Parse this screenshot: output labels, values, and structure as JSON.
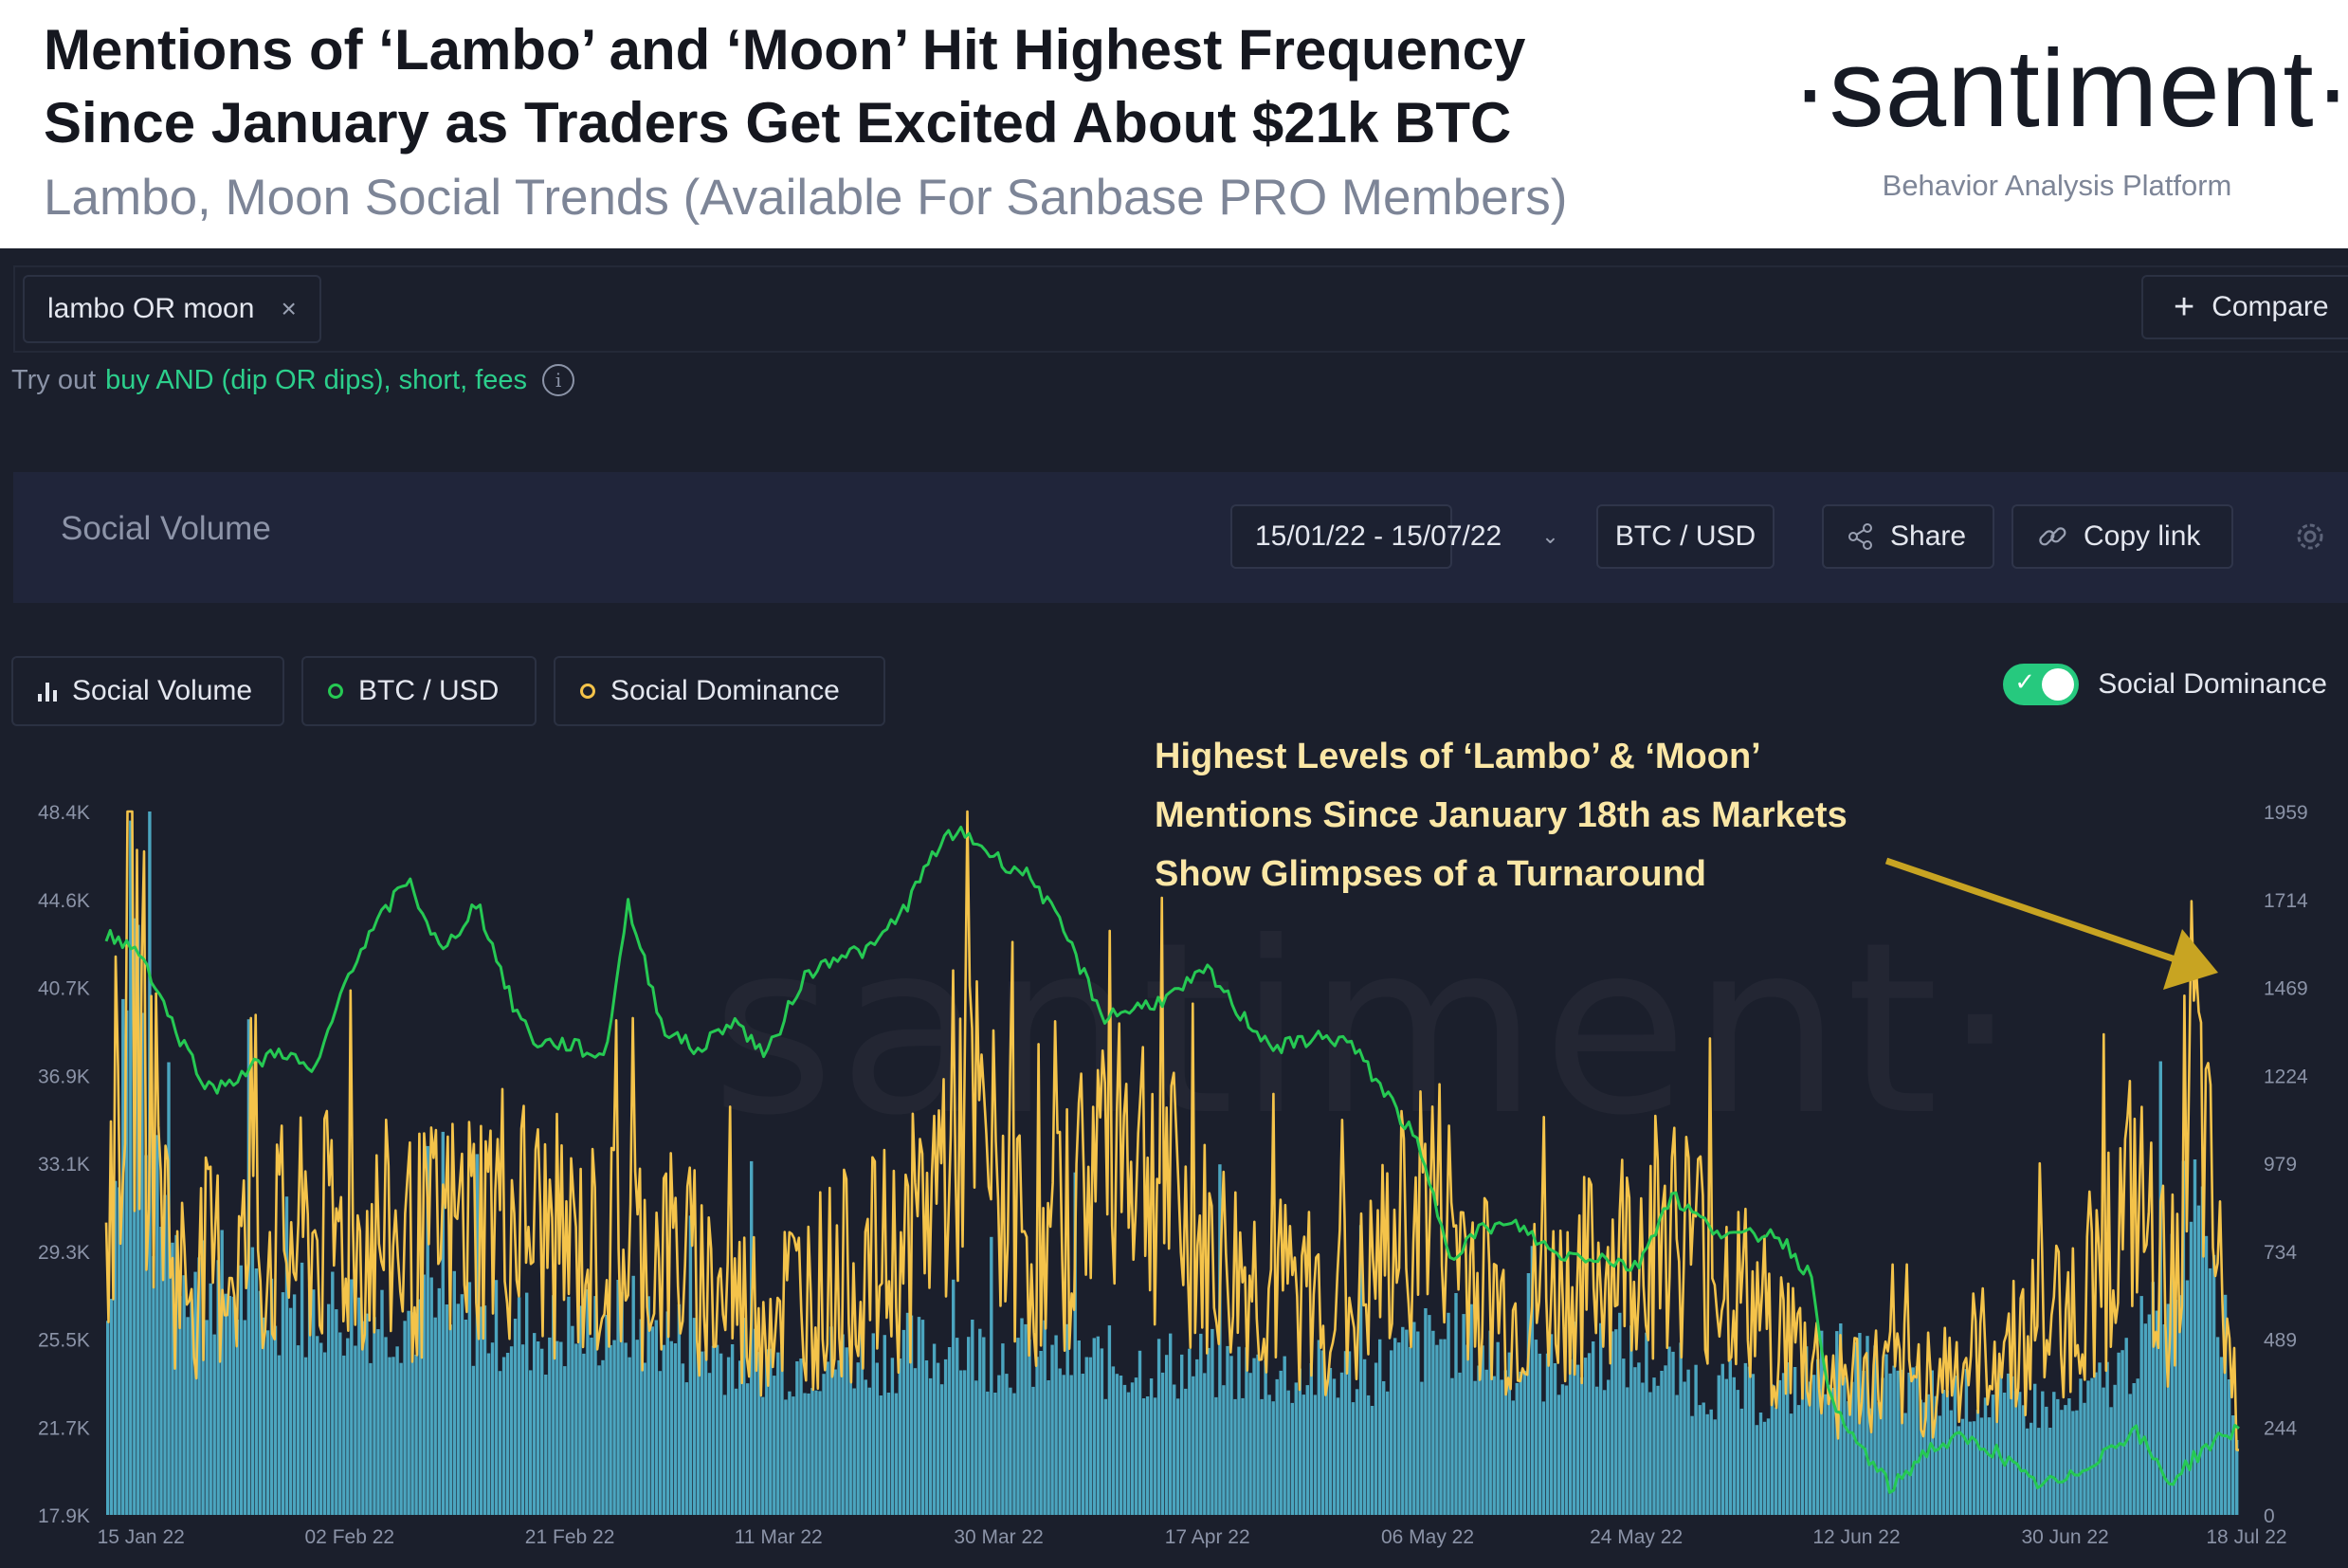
{
  "header": {
    "title_line1": "Mentions of ‘Lambo’ and ‘Moon’ Hit Highest Frequency",
    "title_line2": "Since January as Traders Get Excited About $21k BTC",
    "subtitle": "Lambo, Moon Social Trends (Available For Sanbase PRO Members)",
    "brand_name": "·santiment·",
    "brand_tagline": "Behavior Analysis Platform"
  },
  "search": {
    "tag_label": "lambo OR moon",
    "tag_remove_icon": "×",
    "compare_icon": "+",
    "compare_label": "Compare",
    "tryout_prefix": "Try out",
    "tryout_links": "buy AND (dip OR dips), short, fees",
    "info_icon": "i"
  },
  "toolbar": {
    "title": "Social Volume",
    "date_range": "15/01/22 - 15/07/22",
    "pair": "BTC / USD",
    "share_label": "Share",
    "copy_link_label": "Copy link"
  },
  "legend": {
    "items": [
      "Social Volume",
      "BTC / USD",
      "Social Dominance"
    ],
    "toggle_label": "Social Dominance",
    "toggle_on": true
  },
  "annotation": {
    "line1": "Highest Levels of ‘Lambo’ & ‘Moon’",
    "line2": "Mentions Since January 18th as Markets",
    "line3": "Show Glimpses of a Turnaround"
  },
  "watermark": "santiment·",
  "colors": {
    "social_volume": "#4fb1cc",
    "btc_usd": "#26c953",
    "social_dominance": "#f4c34a",
    "arrow": "#c8a422"
  },
  "chart_data": {
    "type": "line",
    "title": "Social Volume",
    "x": [
      "15 Jan 22",
      "02 Feb 22",
      "21 Feb 22",
      "11 Mar 22",
      "30 Mar 22",
      "17 Apr 22",
      "06 May 22",
      "24 May 22",
      "12 Jun 22",
      "30 Jun 22",
      "18 Jul 22"
    ],
    "x_range": [
      "2022-01-15",
      "2022-07-18"
    ],
    "y_left": {
      "label": "BTC / USD",
      "ticks": [
        "48.4K",
        "44.6K",
        "40.7K",
        "36.9K",
        "33.1K",
        "29.3K",
        "25.5K",
        "21.7K",
        "17.9K"
      ],
      "range": [
        17900,
        48400
      ]
    },
    "y_right": {
      "label": "Social Volume",
      "ticks": [
        "1959",
        "1714",
        "1469",
        "1224",
        "979",
        "734",
        "489",
        "244",
        "0"
      ],
      "range": [
        0,
        1959
      ]
    },
    "series": [
      {
        "name": "BTC / USD",
        "axis": "left",
        "points": [
          [
            "2022-01-15",
            43100
          ],
          [
            "2022-01-18",
            42300
          ],
          [
            "2022-01-21",
            38900
          ],
          [
            "2022-01-24",
            36300
          ],
          [
            "2022-01-27",
            37100
          ],
          [
            "2022-01-30",
            38100
          ],
          [
            "2022-02-02",
            37000
          ],
          [
            "2022-02-05",
            41600
          ],
          [
            "2022-02-08",
            44000
          ],
          [
            "2022-02-10",
            45500
          ],
          [
            "2022-02-13",
            42200
          ],
          [
            "2022-02-16",
            44500
          ],
          [
            "2022-02-19",
            40100
          ],
          [
            "2022-02-21",
            38400
          ],
          [
            "2022-02-24",
            38300
          ],
          [
            "2022-02-27",
            37700
          ],
          [
            "2022-03-01",
            44400
          ],
          [
            "2022-03-04",
            39100
          ],
          [
            "2022-03-07",
            38000
          ],
          [
            "2022-03-10",
            39400
          ],
          [
            "2022-03-13",
            37800
          ],
          [
            "2022-03-16",
            41100
          ],
          [
            "2022-03-19",
            42200
          ],
          [
            "2022-03-22",
            42400
          ],
          [
            "2022-03-25",
            44300
          ],
          [
            "2022-03-28",
            47100
          ],
          [
            "2022-03-30",
            47500
          ],
          [
            "2022-04-02",
            46300
          ],
          [
            "2022-04-05",
            45500
          ],
          [
            "2022-04-08",
            42800
          ],
          [
            "2022-04-11",
            39500
          ],
          [
            "2022-04-14",
            39900
          ],
          [
            "2022-04-17",
            40400
          ],
          [
            "2022-04-20",
            41500
          ],
          [
            "2022-04-23",
            39500
          ],
          [
            "2022-04-26",
            38100
          ],
          [
            "2022-04-29",
            38600
          ],
          [
            "2022-05-02",
            38500
          ],
          [
            "2022-05-05",
            36500
          ],
          [
            "2022-05-08",
            34100
          ],
          [
            "2022-05-11",
            29200
          ],
          [
            "2022-05-14",
            30400
          ],
          [
            "2022-05-17",
            30400
          ],
          [
            "2022-05-20",
            29200
          ],
          [
            "2022-05-24",
            29100
          ],
          [
            "2022-05-27",
            28600
          ],
          [
            "2022-05-30",
            31800
          ],
          [
            "2022-06-02",
            30500
          ],
          [
            "2022-06-05",
            29900
          ],
          [
            "2022-06-08",
            30200
          ],
          [
            "2022-06-11",
            28300
          ],
          [
            "2022-06-13",
            22400
          ],
          [
            "2022-06-16",
            20400
          ],
          [
            "2022-06-18",
            19000
          ],
          [
            "2022-06-21",
            20700
          ],
          [
            "2022-06-24",
            21200
          ],
          [
            "2022-06-27",
            20700
          ],
          [
            "2022-06-30",
            19300
          ],
          [
            "2022-07-03",
            19300
          ],
          [
            "2022-07-06",
            20500
          ],
          [
            "2022-07-09",
            21600
          ],
          [
            "2022-07-12",
            19300
          ],
          [
            "2022-07-15",
            20800
          ],
          [
            "2022-07-18",
            21700
          ]
        ]
      },
      {
        "name": "Social Volume",
        "axis": "right",
        "points": [
          [
            "2022-01-15",
            560
          ],
          [
            "2022-01-17",
            1860
          ],
          [
            "2022-01-19",
            900
          ],
          [
            "2022-01-22",
            720
          ],
          [
            "2022-01-26",
            640
          ],
          [
            "2022-02-01",
            600
          ],
          [
            "2022-02-08",
            580
          ],
          [
            "2022-02-15",
            560
          ],
          [
            "2022-02-22",
            520
          ],
          [
            "2022-03-01",
            560
          ],
          [
            "2022-03-08",
            470
          ],
          [
            "2022-03-15",
            440
          ],
          [
            "2022-03-22",
            460
          ],
          [
            "2022-03-30",
            480
          ],
          [
            "2022-04-06",
            450
          ],
          [
            "2022-04-13",
            430
          ],
          [
            "2022-04-20",
            430
          ],
          [
            "2022-04-27",
            400
          ],
          [
            "2022-05-04",
            410
          ],
          [
            "2022-05-11",
            520
          ],
          [
            "2022-05-18",
            410
          ],
          [
            "2022-05-25",
            480
          ],
          [
            "2022-06-01",
            380
          ],
          [
            "2022-06-08",
            330
          ],
          [
            "2022-06-13",
            460
          ],
          [
            "2022-06-20",
            350
          ],
          [
            "2022-06-27",
            330
          ],
          [
            "2022-07-04",
            300
          ],
          [
            "2022-07-08",
            420
          ],
          [
            "2022-07-11",
            560
          ],
          [
            "2022-07-15",
            1050
          ],
          [
            "2022-07-18",
            240
          ]
        ]
      },
      {
        "name": "Social Dominance",
        "axis": "right",
        "points": [
          [
            "2022-01-15",
            900
          ],
          [
            "2022-01-17",
            1930
          ],
          [
            "2022-01-21",
            800
          ],
          [
            "2022-01-28",
            900
          ],
          [
            "2022-02-04",
            950
          ],
          [
            "2022-02-11",
            900
          ],
          [
            "2022-02-18",
            1050
          ],
          [
            "2022-02-25",
            880
          ],
          [
            "2022-03-04",
            900
          ],
          [
            "2022-03-11",
            700
          ],
          [
            "2022-03-18",
            780
          ],
          [
            "2022-03-25",
            880
          ],
          [
            "2022-03-30",
            1370
          ],
          [
            "2022-04-06",
            800
          ],
          [
            "2022-04-12",
            1400
          ],
          [
            "2022-04-19",
            900
          ],
          [
            "2022-04-26",
            750
          ],
          [
            "2022-05-03",
            700
          ],
          [
            "2022-05-09",
            1100
          ],
          [
            "2022-05-16",
            650
          ],
          [
            "2022-05-23",
            800
          ],
          [
            "2022-05-30",
            1000
          ],
          [
            "2022-06-06",
            700
          ],
          [
            "2022-06-13",
            450
          ],
          [
            "2022-06-20",
            450
          ],
          [
            "2022-06-27",
            550
          ],
          [
            "2022-07-04",
            700
          ],
          [
            "2022-07-09",
            1050
          ],
          [
            "2022-07-12",
            700
          ],
          [
            "2022-07-14",
            1520
          ],
          [
            "2022-07-16",
            850
          ],
          [
            "2022-07-18",
            300
          ]
        ]
      }
    ]
  }
}
